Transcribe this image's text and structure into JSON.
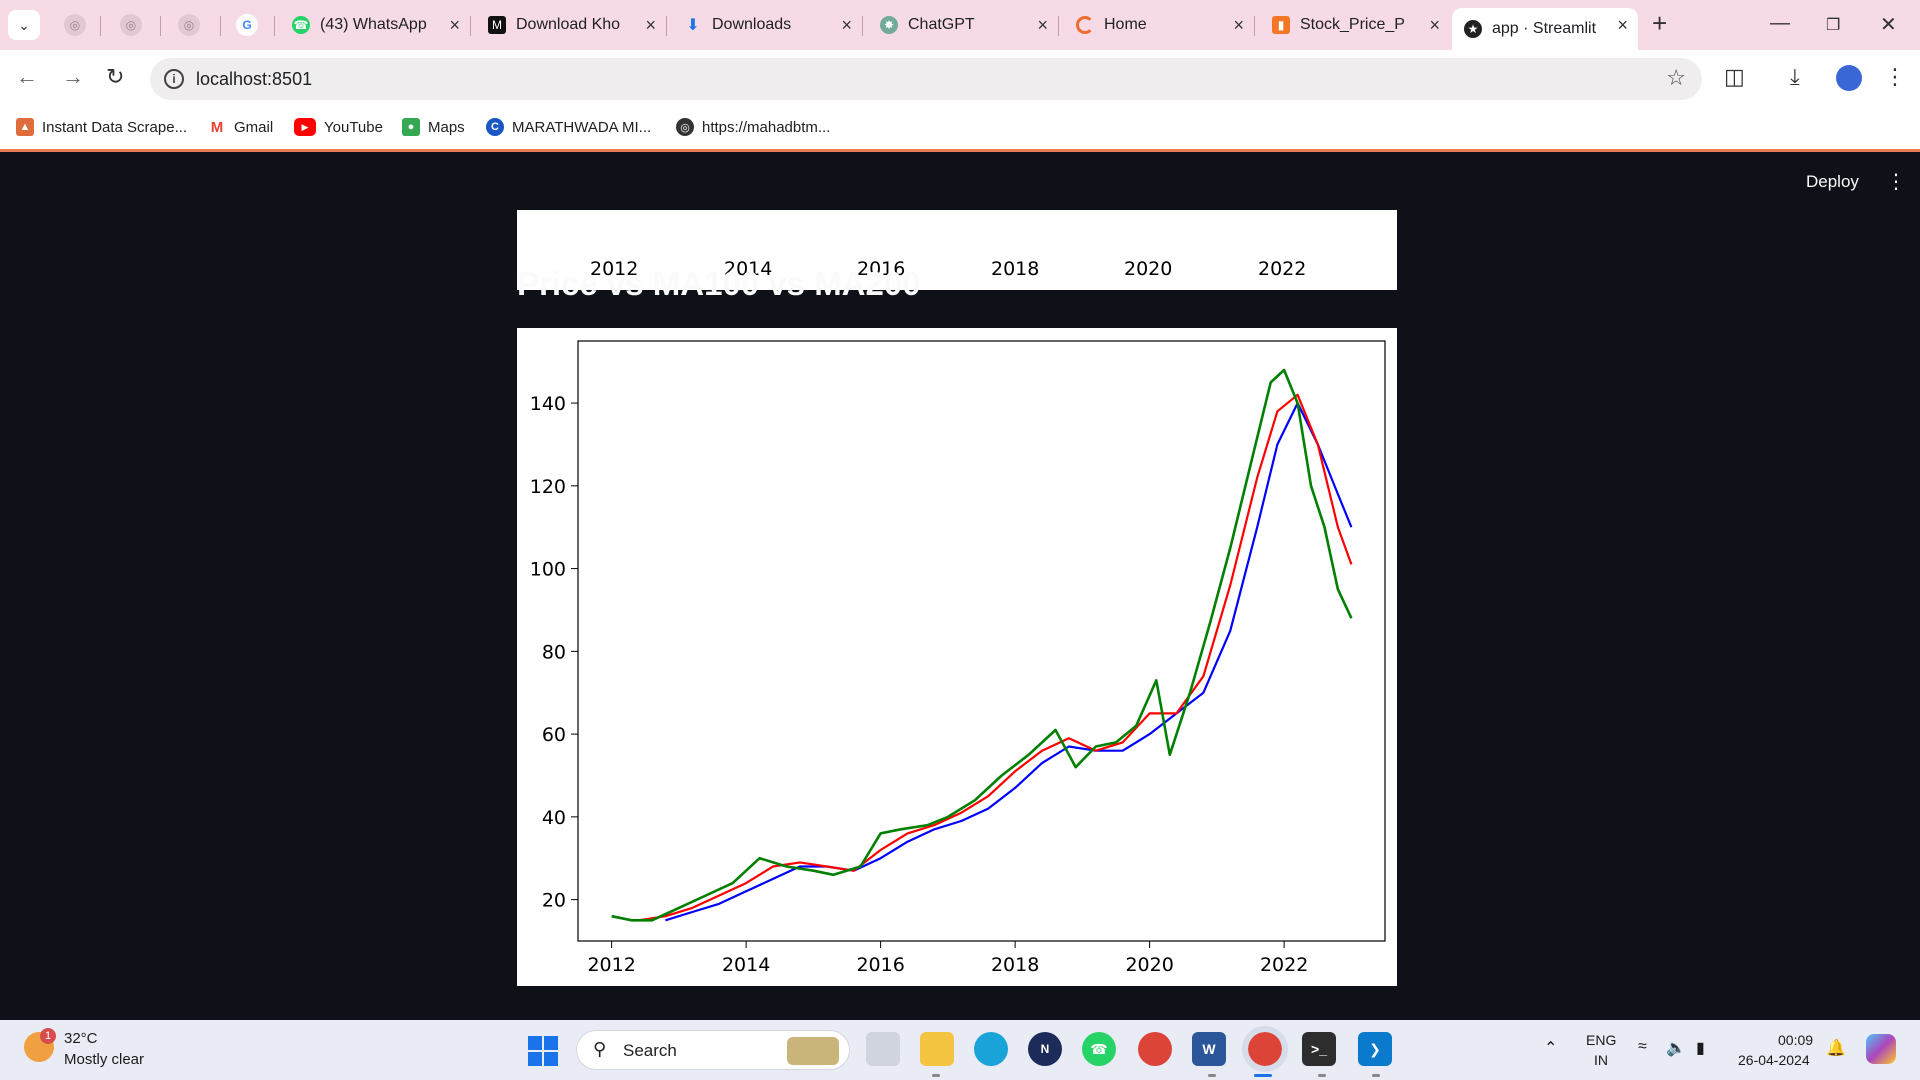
{
  "browser": {
    "tabs": [
      {
        "label": "(43) WhatsApp",
        "icon": "whatsapp-icon"
      },
      {
        "label": "Download Kho",
        "icon": "m-logo-icon"
      },
      {
        "label": "Downloads",
        "icon": "download-icon"
      },
      {
        "label": "ChatGPT",
        "icon": "chatgpt-icon"
      },
      {
        "label": "Home",
        "icon": "home-loader-icon"
      },
      {
        "label": "Stock_Price_Pre",
        "icon": "notebook-icon"
      },
      {
        "label": "app · Streamlit",
        "icon": "streamlit-icon"
      }
    ],
    "url": "localhost:8501",
    "bookmarks": [
      {
        "label": "Instant Data Scrape...",
        "icon": "scraper-icon"
      },
      {
        "label": "Gmail",
        "icon": "gmail-icon"
      },
      {
        "label": "YouTube",
        "icon": "youtube-icon"
      },
      {
        "label": "Maps",
        "icon": "maps-icon"
      },
      {
        "label": "MARATHWADA MI...",
        "icon": "c-logo-icon"
      },
      {
        "label": "https://mahadbtm...",
        "icon": "globe-icon"
      }
    ]
  },
  "app": {
    "deploy_label": "Deploy",
    "section_title": "Price vs MA100 vs MA200",
    "prev_chart_ticks": [
      "2012",
      "2014",
      "2016",
      "2018",
      "2020",
      "2022"
    ]
  },
  "chart_data": {
    "type": "line",
    "title": "",
    "xlabel": "",
    "ylabel": "",
    "xlim": [
      2011.5,
      2023.5
    ],
    "ylim": [
      10,
      155
    ],
    "x_ticks": [
      "2012",
      "2014",
      "2016",
      "2018",
      "2020",
      "2022"
    ],
    "y_ticks": [
      "20",
      "40",
      "60",
      "80",
      "100",
      "120",
      "140"
    ],
    "grid": false,
    "series": [
      {
        "color": "#008000",
        "x": [
          2012.0,
          2012.3,
          2012.6,
          2013.0,
          2013.4,
          2013.8,
          2014.2,
          2014.6,
          2015.0,
          2015.3,
          2015.7,
          2016.0,
          2016.3,
          2016.7,
          2017.0,
          2017.4,
          2017.8,
          2018.2,
          2018.6,
          2018.9,
          2019.2,
          2019.5,
          2019.8,
          2020.1,
          2020.3,
          2020.6,
          2020.9,
          2021.2,
          2021.5,
          2021.8,
          2022.0,
          2022.2,
          2022.4,
          2022.6,
          2022.8,
          2023.0
        ],
        "y": [
          16,
          15,
          15,
          18,
          21,
          24,
          30,
          28,
          27,
          26,
          28,
          36,
          37,
          38,
          40,
          44,
          50,
          55,
          61,
          52,
          57,
          58,
          62,
          73,
          55,
          70,
          87,
          105,
          125,
          145,
          148,
          140,
          120,
          110,
          95,
          88
        ]
      },
      {
        "color": "#ff0000",
        "x": [
          2012.4,
          2012.8,
          2013.2,
          2013.6,
          2014.0,
          2014.4,
          2014.8,
          2015.2,
          2015.6,
          2016.0,
          2016.4,
          2016.8,
          2017.2,
          2017.6,
          2018.0,
          2018.4,
          2018.8,
          2019.2,
          2019.6,
          2020.0,
          2020.4,
          2020.8,
          2021.2,
          2021.6,
          2021.9,
          2022.2,
          2022.5,
          2022.8,
          2023.0
        ],
        "y": [
          15,
          16,
          18,
          21,
          24,
          28,
          29,
          28,
          27,
          32,
          36,
          38,
          41,
          45,
          51,
          56,
          59,
          56,
          58,
          65,
          65,
          74,
          96,
          122,
          138,
          142,
          130,
          110,
          101
        ]
      },
      {
        "color": "#0000ff",
        "x": [
          2012.8,
          2013.2,
          2013.6,
          2014.0,
          2014.4,
          2014.8,
          2015.2,
          2015.6,
          2016.0,
          2016.4,
          2016.8,
          2017.2,
          2017.6,
          2018.0,
          2018.4,
          2018.8,
          2019.2,
          2019.6,
          2020.0,
          2020.4,
          2020.8,
          2021.2,
          2021.6,
          2021.9,
          2022.2,
          2022.5,
          2022.8,
          2023.0
        ],
        "y": [
          15,
          17,
          19,
          22,
          25,
          28,
          28,
          27,
          30,
          34,
          37,
          39,
          42,
          47,
          53,
          57,
          56,
          56,
          60,
          65,
          70,
          85,
          110,
          130,
          140,
          130,
          118,
          110
        ]
      }
    ]
  },
  "taskbar": {
    "temp": "32°C",
    "condition": "Mostly clear",
    "weather_badge": "1",
    "search_label": "Search",
    "lang_line1": "ENG",
    "lang_line2": "IN",
    "time": "00:09",
    "date": "26-04-2024"
  }
}
